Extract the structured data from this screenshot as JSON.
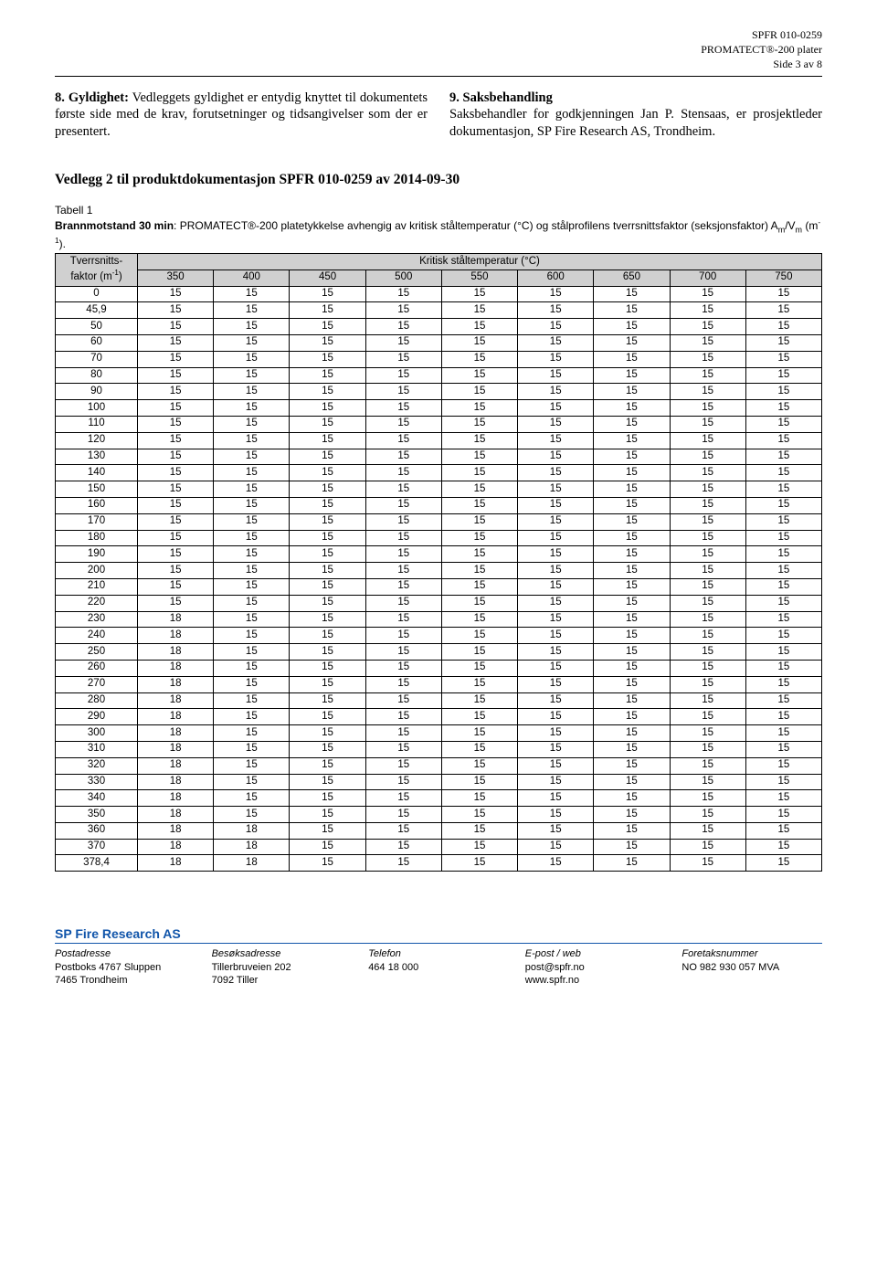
{
  "header": {
    "doc_id": "SPFR 010-0259",
    "product_line": "PROMATECT®-200 plater",
    "page_info": "Side 3 av 8"
  },
  "section8": {
    "heading": "8. Gyldighet:",
    "body": "Vedleggets gyldighet er entydig knyttet til dokumentets første side med de krav, forutsetninger og tidsangivelser som der er presentert."
  },
  "section9": {
    "heading": "9. Saksbehandling",
    "body": "Saksbehandler for godkjenningen Jan P. Stensaas, er prosjektleder dokumentasjon, SP Fire Research AS, Trondheim."
  },
  "appendix_title": "Vedlegg 2 til produktdokumentasjon SPFR 010-0259 av 2014-09-30",
  "table": {
    "table_label": "Tabell 1",
    "caption_prefix": "Brannmotstand 30 min",
    "caption_rest": ": PROMATECT®-200 platetykkelse avhengig av kritisk ståltemperatur (°C) og stålprofilens tverrsnittsfaktor (seksjonsfaktor) A",
    "caption_sub1": "m",
    "caption_mid": "/V",
    "caption_sub2": "m",
    "caption_end": " (m",
    "caption_sup": "-1",
    "caption_fin": ").",
    "corner_top": "Tverrsnitts-",
    "corner_bottom_a": "faktor (m",
    "corner_bottom_sup": "-1",
    "corner_bottom_b": ")",
    "span_header": "Kritisk ståltemperatur (°C)",
    "cols": [
      "350",
      "400",
      "450",
      "500",
      "550",
      "600",
      "650",
      "700",
      "750"
    ],
    "rows": [
      {
        "f": "0",
        "v": [
          "15",
          "15",
          "15",
          "15",
          "15",
          "15",
          "15",
          "15",
          "15"
        ]
      },
      {
        "f": "45,9",
        "v": [
          "15",
          "15",
          "15",
          "15",
          "15",
          "15",
          "15",
          "15",
          "15"
        ]
      },
      {
        "f": "50",
        "v": [
          "15",
          "15",
          "15",
          "15",
          "15",
          "15",
          "15",
          "15",
          "15"
        ]
      },
      {
        "f": "60",
        "v": [
          "15",
          "15",
          "15",
          "15",
          "15",
          "15",
          "15",
          "15",
          "15"
        ]
      },
      {
        "f": "70",
        "v": [
          "15",
          "15",
          "15",
          "15",
          "15",
          "15",
          "15",
          "15",
          "15"
        ]
      },
      {
        "f": "80",
        "v": [
          "15",
          "15",
          "15",
          "15",
          "15",
          "15",
          "15",
          "15",
          "15"
        ]
      },
      {
        "f": "90",
        "v": [
          "15",
          "15",
          "15",
          "15",
          "15",
          "15",
          "15",
          "15",
          "15"
        ]
      },
      {
        "f": "100",
        "v": [
          "15",
          "15",
          "15",
          "15",
          "15",
          "15",
          "15",
          "15",
          "15"
        ]
      },
      {
        "f": "110",
        "v": [
          "15",
          "15",
          "15",
          "15",
          "15",
          "15",
          "15",
          "15",
          "15"
        ]
      },
      {
        "f": "120",
        "v": [
          "15",
          "15",
          "15",
          "15",
          "15",
          "15",
          "15",
          "15",
          "15"
        ]
      },
      {
        "f": "130",
        "v": [
          "15",
          "15",
          "15",
          "15",
          "15",
          "15",
          "15",
          "15",
          "15"
        ]
      },
      {
        "f": "140",
        "v": [
          "15",
          "15",
          "15",
          "15",
          "15",
          "15",
          "15",
          "15",
          "15"
        ]
      },
      {
        "f": "150",
        "v": [
          "15",
          "15",
          "15",
          "15",
          "15",
          "15",
          "15",
          "15",
          "15"
        ]
      },
      {
        "f": "160",
        "v": [
          "15",
          "15",
          "15",
          "15",
          "15",
          "15",
          "15",
          "15",
          "15"
        ]
      },
      {
        "f": "170",
        "v": [
          "15",
          "15",
          "15",
          "15",
          "15",
          "15",
          "15",
          "15",
          "15"
        ]
      },
      {
        "f": "180",
        "v": [
          "15",
          "15",
          "15",
          "15",
          "15",
          "15",
          "15",
          "15",
          "15"
        ]
      },
      {
        "f": "190",
        "v": [
          "15",
          "15",
          "15",
          "15",
          "15",
          "15",
          "15",
          "15",
          "15"
        ]
      },
      {
        "f": "200",
        "v": [
          "15",
          "15",
          "15",
          "15",
          "15",
          "15",
          "15",
          "15",
          "15"
        ]
      },
      {
        "f": "210",
        "v": [
          "15",
          "15",
          "15",
          "15",
          "15",
          "15",
          "15",
          "15",
          "15"
        ]
      },
      {
        "f": "220",
        "v": [
          "15",
          "15",
          "15",
          "15",
          "15",
          "15",
          "15",
          "15",
          "15"
        ]
      },
      {
        "f": "230",
        "v": [
          "18",
          "15",
          "15",
          "15",
          "15",
          "15",
          "15",
          "15",
          "15"
        ]
      },
      {
        "f": "240",
        "v": [
          "18",
          "15",
          "15",
          "15",
          "15",
          "15",
          "15",
          "15",
          "15"
        ]
      },
      {
        "f": "250",
        "v": [
          "18",
          "15",
          "15",
          "15",
          "15",
          "15",
          "15",
          "15",
          "15"
        ]
      },
      {
        "f": "260",
        "v": [
          "18",
          "15",
          "15",
          "15",
          "15",
          "15",
          "15",
          "15",
          "15"
        ]
      },
      {
        "f": "270",
        "v": [
          "18",
          "15",
          "15",
          "15",
          "15",
          "15",
          "15",
          "15",
          "15"
        ]
      },
      {
        "f": "280",
        "v": [
          "18",
          "15",
          "15",
          "15",
          "15",
          "15",
          "15",
          "15",
          "15"
        ]
      },
      {
        "f": "290",
        "v": [
          "18",
          "15",
          "15",
          "15",
          "15",
          "15",
          "15",
          "15",
          "15"
        ]
      },
      {
        "f": "300",
        "v": [
          "18",
          "15",
          "15",
          "15",
          "15",
          "15",
          "15",
          "15",
          "15"
        ]
      },
      {
        "f": "310",
        "v": [
          "18",
          "15",
          "15",
          "15",
          "15",
          "15",
          "15",
          "15",
          "15"
        ]
      },
      {
        "f": "320",
        "v": [
          "18",
          "15",
          "15",
          "15",
          "15",
          "15",
          "15",
          "15",
          "15"
        ]
      },
      {
        "f": "330",
        "v": [
          "18",
          "15",
          "15",
          "15",
          "15",
          "15",
          "15",
          "15",
          "15"
        ]
      },
      {
        "f": "340",
        "v": [
          "18",
          "15",
          "15",
          "15",
          "15",
          "15",
          "15",
          "15",
          "15"
        ]
      },
      {
        "f": "350",
        "v": [
          "18",
          "15",
          "15",
          "15",
          "15",
          "15",
          "15",
          "15",
          "15"
        ]
      },
      {
        "f": "360",
        "v": [
          "18",
          "18",
          "15",
          "15",
          "15",
          "15",
          "15",
          "15",
          "15"
        ]
      },
      {
        "f": "370",
        "v": [
          "18",
          "18",
          "15",
          "15",
          "15",
          "15",
          "15",
          "15",
          "15"
        ]
      },
      {
        "f": "378,4",
        "v": [
          "18",
          "18",
          "15",
          "15",
          "15",
          "15",
          "15",
          "15",
          "15"
        ]
      }
    ]
  },
  "footer": {
    "org": "SP Fire Research AS",
    "cols": [
      {
        "h": "Postadresse",
        "l1": "Postboks 4767 Sluppen",
        "l2": "7465 Trondheim"
      },
      {
        "h": "Besøksadresse",
        "l1": "Tillerbruveien 202",
        "l2": "7092 Tiller"
      },
      {
        "h": "Telefon",
        "l1": "464 18 000",
        "l2": ""
      },
      {
        "h": "E-post / web",
        "l1": "post@spfr.no",
        "l2": "www.spfr.no"
      },
      {
        "h": "Foretaksnummer",
        "l1": "NO 982 930 057 MVA",
        "l2": ""
      }
    ]
  }
}
